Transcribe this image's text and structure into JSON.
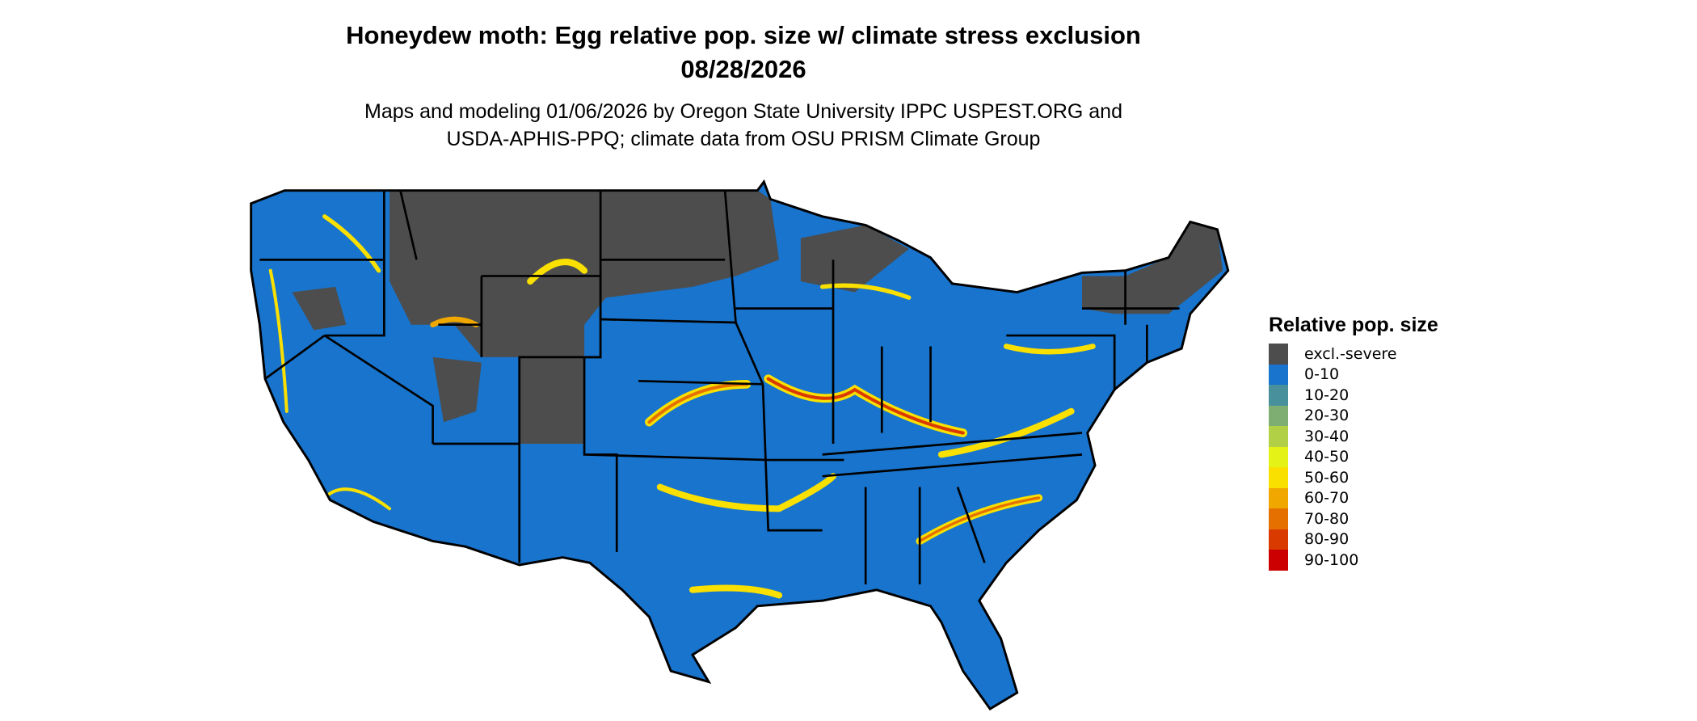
{
  "title": {
    "line1": "Honeydew moth: Egg relative pop. size w/ climate stress exclusion",
    "line2": "08/28/2026"
  },
  "subtitle": {
    "line1": "Maps and modeling 01/06/2026 by Oregon State University IPPC USPEST.ORG and",
    "line2": "USDA-APHIS-PPQ; climate data from OSU PRISM Climate Group"
  },
  "map": {
    "region": "Contiguous United States",
    "dominant_class": "0-10",
    "excluded_regions_color": "#4d4d4d"
  },
  "legend": {
    "title": "Relative pop. size",
    "items": [
      {
        "label": "excl.-severe",
        "color": "#4d4d4d"
      },
      {
        "label": "0-10",
        "color": "#1874cd"
      },
      {
        "label": "10-20",
        "color": "#48909c"
      },
      {
        "label": "20-30",
        "color": "#7eae72"
      },
      {
        "label": "30-40",
        "color": "#b2d046"
      },
      {
        "label": "40-50",
        "color": "#e5f218"
      },
      {
        "label": "50-60",
        "color": "#f9e000"
      },
      {
        "label": "60-70",
        "color": "#f0a800"
      },
      {
        "label": "70-80",
        "color": "#e57000"
      },
      {
        "label": "80-90",
        "color": "#d83a00"
      },
      {
        "label": "90-100",
        "color": "#cc0000"
      }
    ]
  }
}
